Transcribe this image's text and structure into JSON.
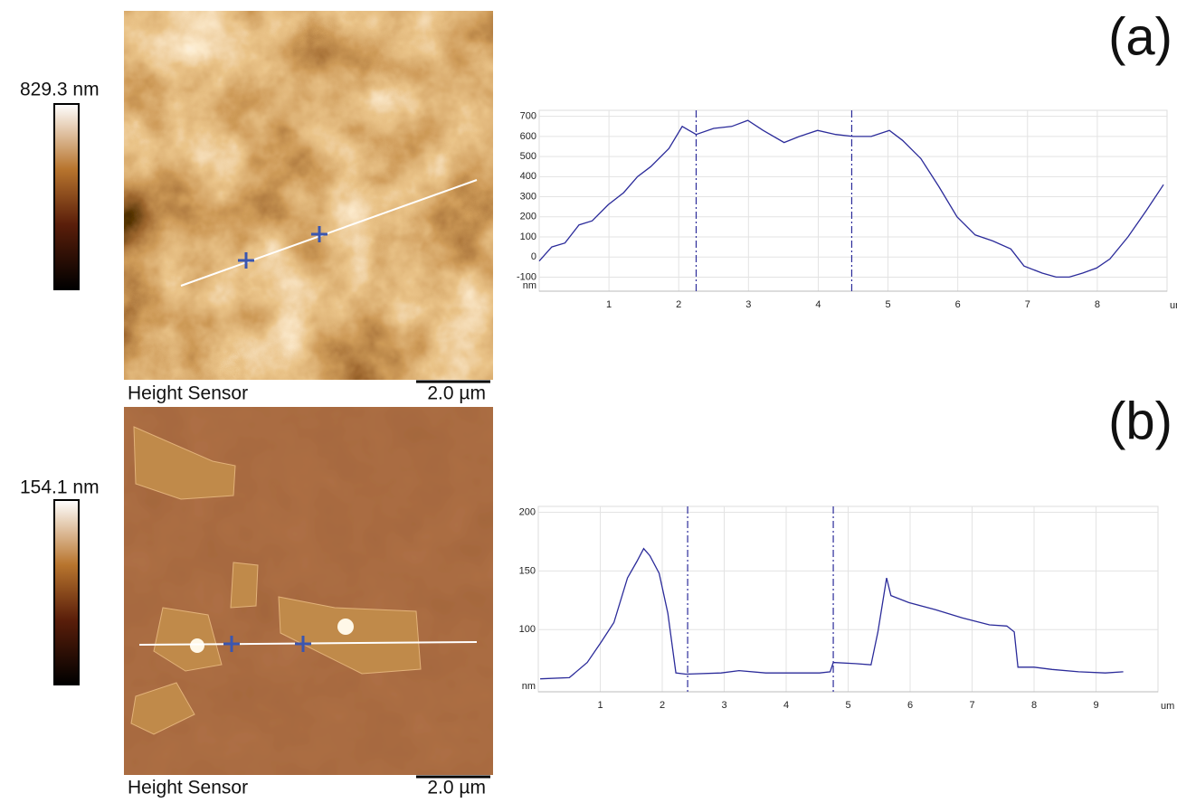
{
  "panels": [
    {
      "label": "(a)",
      "colorbar_max": "829.3 nm",
      "caption": "Height Sensor",
      "scale_bar": "2.0 µm"
    },
    {
      "label": "(b)",
      "colorbar_max": "154.1 nm",
      "caption": "Height Sensor",
      "scale_bar": "2.0 µm"
    }
  ],
  "chart_data": [
    {
      "type": "line",
      "color": "#2b2b9a",
      "xlabel": "um",
      "ylabel": "nm",
      "x": [
        0,
        0.18,
        0.37,
        0.57,
        0.76,
        0.99,
        1.21,
        1.41,
        1.6,
        1.86,
        2.05,
        2.25,
        2.5,
        2.76,
        2.99,
        3.21,
        3.51,
        3.73,
        3.99,
        4.25,
        4.5,
        4.76,
        5.02,
        5.21,
        5.47,
        5.73,
        5.99,
        6.25,
        6.5,
        6.76,
        6.95,
        7.21,
        7.41,
        7.6,
        7.79,
        7.99,
        8.18,
        8.44,
        8.7,
        8.95
      ],
      "values": [
        -20,
        50,
        70,
        160,
        180,
        260,
        320,
        400,
        450,
        540,
        650,
        610,
        640,
        650,
        680,
        630,
        570,
        600,
        630,
        610,
        600,
        600,
        630,
        580,
        490,
        350,
        200,
        110,
        80,
        40,
        -45,
        -80,
        -100,
        -100,
        -80,
        -55,
        -10,
        100,
        230,
        360
      ],
      "cursor_x": [
        2.25,
        4.48
      ],
      "xlim": [
        0,
        9
      ],
      "ylim": [
        -170,
        730
      ],
      "xticks": [
        1,
        2,
        3,
        4,
        5,
        6,
        7,
        8
      ],
      "yticks": [
        -100,
        0,
        100,
        200,
        300,
        400,
        500,
        600,
        700
      ],
      "grid": true
    },
    {
      "type": "line",
      "color": "#2b2b9a",
      "xlabel": "um",
      "ylabel": "nm",
      "x": [
        0.03,
        0.5,
        0.79,
        1.01,
        1.22,
        1.44,
        1.59,
        1.7,
        1.8,
        1.95,
        2.09,
        2.22,
        2.38,
        2.95,
        3.24,
        3.67,
        4.11,
        4.54,
        4.71,
        4.76,
        5.12,
        5.37,
        5.48,
        5.62,
        5.69,
        5.98,
        6.41,
        6.84,
        7.28,
        7.56,
        7.68,
        7.74,
        8.0,
        8.29,
        8.72,
        9.15,
        9.44
      ],
      "values": [
        58,
        59,
        72,
        89,
        106,
        144,
        158,
        169,
        163,
        148,
        114,
        63,
        62,
        63,
        65,
        63,
        63,
        63,
        64,
        72,
        71,
        70,
        98,
        144,
        129,
        123,
        117,
        110,
        104,
        103,
        98,
        68,
        68,
        66,
        64,
        63,
        64
      ],
      "cursor_x": [
        2.41,
        4.76
      ],
      "xlim": [
        0,
        10
      ],
      "ylim": [
        47,
        205
      ],
      "xticks": [
        1,
        2,
        3,
        4,
        5,
        6,
        7,
        8,
        9
      ],
      "yticks": [
        100,
        150,
        200
      ],
      "grid": true
    }
  ]
}
